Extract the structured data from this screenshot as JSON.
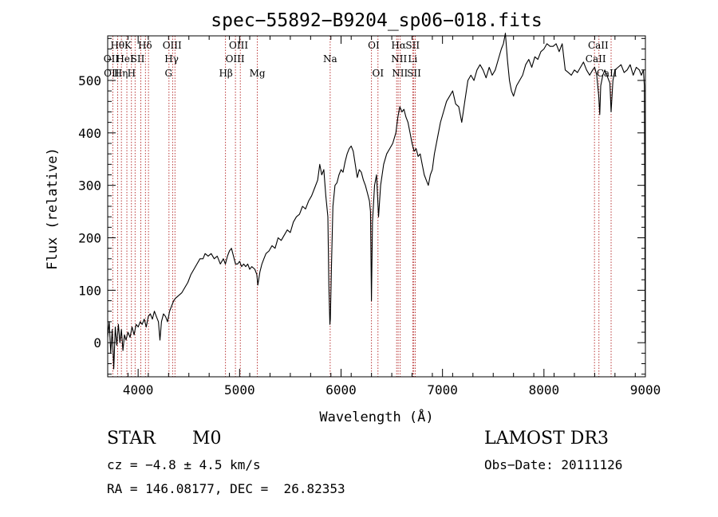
{
  "chart_data": {
    "type": "line",
    "title": "spec−55892−B9204_sp06−018.fits",
    "xlabel": "Wavelength (Å)",
    "ylabel": "Flux (relative)",
    "xlim": [
      3700,
      9000
    ],
    "ylim": [
      -65,
      585
    ],
    "xticks": [
      4000,
      5000,
      6000,
      7000,
      8000,
      9000
    ],
    "yticks": [
      0,
      100,
      200,
      300,
      400,
      500
    ],
    "grid": false,
    "series": [
      {
        "points": [
          [
            3700,
            10
          ],
          [
            3715,
            40
          ],
          [
            3730,
            -20
          ],
          [
            3745,
            25
          ],
          [
            3760,
            -50
          ],
          [
            3775,
            30
          ],
          [
            3790,
            -5
          ],
          [
            3805,
            35
          ],
          [
            3820,
            0
          ],
          [
            3835,
            25
          ],
          [
            3850,
            -15
          ],
          [
            3865,
            15
          ],
          [
            3880,
            5
          ],
          [
            3900,
            20
          ],
          [
            3920,
            10
          ],
          [
            3940,
            30
          ],
          [
            3960,
            15
          ],
          [
            3980,
            35
          ],
          [
            4000,
            30
          ],
          [
            4020,
            40
          ],
          [
            4040,
            35
          ],
          [
            4060,
            45
          ],
          [
            4080,
            30
          ],
          [
            4100,
            50
          ],
          [
            4120,
            55
          ],
          [
            4140,
            45
          ],
          [
            4160,
            60
          ],
          [
            4180,
            50
          ],
          [
            4200,
            40
          ],
          [
            4215,
            5
          ],
          [
            4230,
            40
          ],
          [
            4250,
            55
          ],
          [
            4270,
            50
          ],
          [
            4290,
            40
          ],
          [
            4310,
            60
          ],
          [
            4330,
            70
          ],
          [
            4350,
            80
          ],
          [
            4370,
            85
          ],
          [
            4400,
            90
          ],
          [
            4430,
            95
          ],
          [
            4460,
            105
          ],
          [
            4490,
            115
          ],
          [
            4520,
            130
          ],
          [
            4550,
            140
          ],
          [
            4580,
            150
          ],
          [
            4610,
            160
          ],
          [
            4640,
            160
          ],
          [
            4660,
            170
          ],
          [
            4690,
            165
          ],
          [
            4720,
            170
          ],
          [
            4750,
            160
          ],
          [
            4780,
            165
          ],
          [
            4810,
            150
          ],
          [
            4840,
            160
          ],
          [
            4860,
            150
          ],
          [
            4880,
            165
          ],
          [
            4900,
            175
          ],
          [
            4920,
            180
          ],
          [
            4940,
            165
          ],
          [
            4960,
            150
          ],
          [
            4980,
            150
          ],
          [
            5000,
            155
          ],
          [
            5020,
            145
          ],
          [
            5040,
            150
          ],
          [
            5060,
            145
          ],
          [
            5080,
            150
          ],
          [
            5100,
            140
          ],
          [
            5120,
            145
          ],
          [
            5150,
            140
          ],
          [
            5170,
            130
          ],
          [
            5180,
            110
          ],
          [
            5200,
            135
          ],
          [
            5220,
            150
          ],
          [
            5240,
            160
          ],
          [
            5260,
            170
          ],
          [
            5290,
            175
          ],
          [
            5320,
            185
          ],
          [
            5350,
            180
          ],
          [
            5380,
            200
          ],
          [
            5410,
            195
          ],
          [
            5440,
            205
          ],
          [
            5470,
            215
          ],
          [
            5500,
            210
          ],
          [
            5530,
            230
          ],
          [
            5560,
            240
          ],
          [
            5590,
            245
          ],
          [
            5620,
            260
          ],
          [
            5650,
            255
          ],
          [
            5680,
            270
          ],
          [
            5710,
            280
          ],
          [
            5740,
            295
          ],
          [
            5770,
            310
          ],
          [
            5790,
            340
          ],
          [
            5810,
            320
          ],
          [
            5830,
            330
          ],
          [
            5850,
            280
          ],
          [
            5870,
            240
          ],
          [
            5880,
            110
          ],
          [
            5890,
            35
          ],
          [
            5895,
            45
          ],
          [
            5905,
            140
          ],
          [
            5920,
            260
          ],
          [
            5940,
            300
          ],
          [
            5960,
            305
          ],
          [
            5980,
            320
          ],
          [
            6000,
            330
          ],
          [
            6020,
            325
          ],
          [
            6040,
            345
          ],
          [
            6060,
            360
          ],
          [
            6080,
            370
          ],
          [
            6100,
            375
          ],
          [
            6120,
            365
          ],
          [
            6140,
            340
          ],
          [
            6160,
            315
          ],
          [
            6180,
            330
          ],
          [
            6200,
            325
          ],
          [
            6220,
            310
          ],
          [
            6240,
            300
          ],
          [
            6260,
            285
          ],
          [
            6280,
            270
          ],
          [
            6290,
            250
          ],
          [
            6300,
            80
          ],
          [
            6310,
            230
          ],
          [
            6330,
            300
          ],
          [
            6350,
            320
          ],
          [
            6370,
            240
          ],
          [
            6390,
            300
          ],
          [
            6420,
            340
          ],
          [
            6450,
            360
          ],
          [
            6480,
            370
          ],
          [
            6510,
            380
          ],
          [
            6540,
            400
          ],
          [
            6560,
            430
          ],
          [
            6580,
            450
          ],
          [
            6600,
            440
          ],
          [
            6620,
            445
          ],
          [
            6640,
            430
          ],
          [
            6660,
            420
          ],
          [
            6680,
            400
          ],
          [
            6700,
            380
          ],
          [
            6720,
            365
          ],
          [
            6740,
            370
          ],
          [
            6760,
            355
          ],
          [
            6780,
            360
          ],
          [
            6800,
            340
          ],
          [
            6820,
            320
          ],
          [
            6840,
            310
          ],
          [
            6860,
            300
          ],
          [
            6880,
            320
          ],
          [
            6900,
            330
          ],
          [
            6920,
            360
          ],
          [
            6950,
            390
          ],
          [
            6980,
            420
          ],
          [
            7010,
            440
          ],
          [
            7040,
            460
          ],
          [
            7070,
            470
          ],
          [
            7100,
            480
          ],
          [
            7130,
            455
          ],
          [
            7160,
            450
          ],
          [
            7190,
            420
          ],
          [
            7220,
            460
          ],
          [
            7250,
            500
          ],
          [
            7280,
            510
          ],
          [
            7310,
            500
          ],
          [
            7340,
            520
          ],
          [
            7370,
            530
          ],
          [
            7400,
            520
          ],
          [
            7430,
            505
          ],
          [
            7460,
            525
          ],
          [
            7490,
            510
          ],
          [
            7520,
            520
          ],
          [
            7550,
            540
          ],
          [
            7580,
            560
          ],
          [
            7600,
            570
          ],
          [
            7620,
            590
          ],
          [
            7640,
            540
          ],
          [
            7660,
            500
          ],
          [
            7680,
            480
          ],
          [
            7700,
            470
          ],
          [
            7730,
            490
          ],
          [
            7760,
            500
          ],
          [
            7790,
            510
          ],
          [
            7820,
            530
          ],
          [
            7850,
            540
          ],
          [
            7880,
            525
          ],
          [
            7910,
            545
          ],
          [
            7940,
            540
          ],
          [
            7970,
            555
          ],
          [
            8000,
            560
          ],
          [
            8030,
            570
          ],
          [
            8060,
            565
          ],
          [
            8090,
            565
          ],
          [
            8120,
            570
          ],
          [
            8150,
            555
          ],
          [
            8180,
            570
          ],
          [
            8210,
            520
          ],
          [
            8240,
            515
          ],
          [
            8270,
            510
          ],
          [
            8300,
            520
          ],
          [
            8330,
            515
          ],
          [
            8360,
            525
          ],
          [
            8390,
            535
          ],
          [
            8420,
            520
          ],
          [
            8450,
            510
          ],
          [
            8480,
            520
          ],
          [
            8500,
            525
          ],
          [
            8520,
            510
          ],
          [
            8540,
            470
          ],
          [
            8550,
            435
          ],
          [
            8560,
            490
          ],
          [
            8580,
            510
          ],
          [
            8600,
            520
          ],
          [
            8630,
            505
          ],
          [
            8650,
            495
          ],
          [
            8662,
            440
          ],
          [
            8680,
            500
          ],
          [
            8700,
            520
          ],
          [
            8730,
            525
          ],
          [
            8760,
            530
          ],
          [
            8790,
            515
          ],
          [
            8820,
            520
          ],
          [
            8850,
            530
          ],
          [
            8880,
            510
          ],
          [
            8910,
            525
          ],
          [
            8940,
            520
          ],
          [
            8960,
            510
          ],
          [
            8980,
            520
          ],
          [
            8990,
            490
          ],
          [
            8995,
            220
          ],
          [
            8998,
            0
          ]
        ]
      }
    ],
    "lines": [
      {
        "x": 3750
      },
      {
        "x": 3798
      },
      {
        "x": 3835
      },
      {
        "x": 3889
      },
      {
        "x": 3934
      },
      {
        "x": 3970
      },
      {
        "x": 4026
      },
      {
        "x": 4072
      },
      {
        "x": 4102
      },
      {
        "x": 4340
      },
      {
        "x": 4363
      },
      {
        "x": 4304
      },
      {
        "x": 4861
      },
      {
        "x": 4959
      },
      {
        "x": 5007
      },
      {
        "x": 5175
      },
      {
        "x": 5893
      },
      {
        "x": 6300
      },
      {
        "x": 6364
      },
      {
        "x": 6548
      },
      {
        "x": 6563
      },
      {
        "x": 6583
      },
      {
        "x": 6707
      },
      {
        "x": 6717
      },
      {
        "x": 6731
      },
      {
        "x": 8498
      },
      {
        "x": 8542
      },
      {
        "x": 8662
      }
    ],
    "line_labels": [
      {
        "text": "Hθ",
        "x": 3797,
        "row": 0
      },
      {
        "text": "K",
        "x": 3899,
        "row": 0
      },
      {
        "text": "Hδ",
        "x": 4068,
        "row": 0
      },
      {
        "text": "OIII",
        "x": 4335,
        "row": 0
      },
      {
        "text": "OIII",
        "x": 4990,
        "row": 0
      },
      {
        "text": "OI",
        "x": 6322,
        "row": 0
      },
      {
        "text": "Hα",
        "x": 6568,
        "row": 0
      },
      {
        "text": "SII",
        "x": 6706,
        "row": 0
      },
      {
        "text": "CaII",
        "x": 8535,
        "row": 0
      },
      {
        "text": "OII",
        "x": 3735,
        "row": 1
      },
      {
        "text": "HeI",
        "x": 3870,
        "row": 1
      },
      {
        "text": "SII",
        "x": 3995,
        "row": 1
      },
      {
        "text": "Hγ",
        "x": 4330,
        "row": 1
      },
      {
        "text": "OIII",
        "x": 4955,
        "row": 1
      },
      {
        "text": "Na",
        "x": 5893,
        "row": 1
      },
      {
        "text": "NII",
        "x": 6572,
        "row": 1
      },
      {
        "text": "Li",
        "x": 6706,
        "row": 1
      },
      {
        "text": "CaII",
        "x": 8510,
        "row": 1
      },
      {
        "text": "OII",
        "x": 3738,
        "row": 2
      },
      {
        "text": "Hη",
        "x": 3830,
        "row": 2
      },
      {
        "text": "H",
        "x": 3935,
        "row": 2
      },
      {
        "text": "G",
        "x": 4300,
        "row": 2
      },
      {
        "text": "Hβ",
        "x": 4865,
        "row": 2
      },
      {
        "text": "Mg",
        "x": 5175,
        "row": 2
      },
      {
        "text": "OI",
        "x": 6364,
        "row": 2
      },
      {
        "text": "NII",
        "x": 6580,
        "row": 2
      },
      {
        "text": "SII",
        "x": 6720,
        "row": 2
      },
      {
        "text": "CaII",
        "x": 8620,
        "row": 2
      }
    ],
    "colors": {
      "spectrum": "#000000",
      "lines": "#b22222",
      "axes": "#000000"
    }
  },
  "info": {
    "class": "STAR",
    "subclass": "M0",
    "survey": "LAMOST DR3",
    "cz": "cz = −4.8 ± 4.5 km/s",
    "obs_date": "Obs−Date: 20111126",
    "coords": "RA = 146.08177, DEC =  26.82353"
  }
}
